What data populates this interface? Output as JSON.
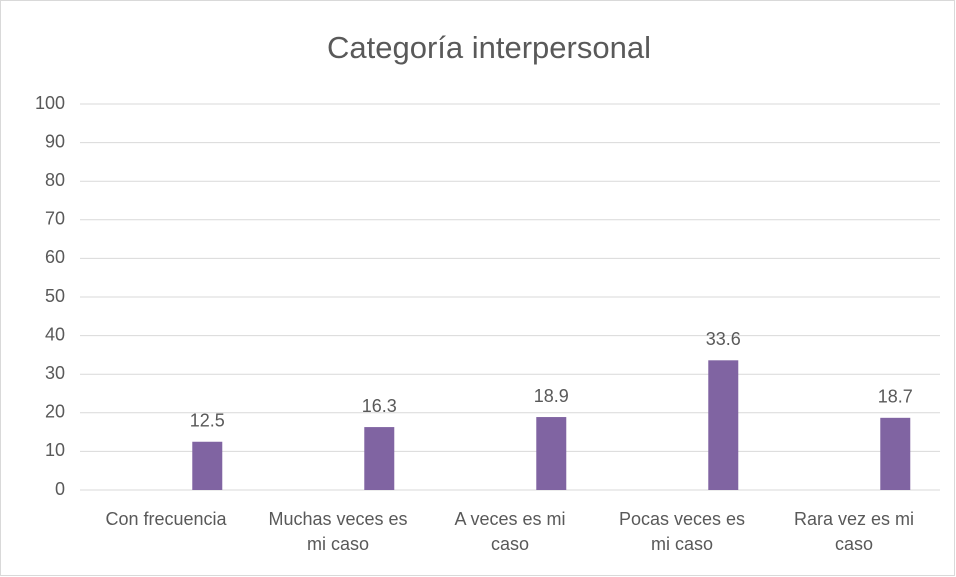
{
  "chart_data": {
    "type": "bar",
    "title": "Categoría interpersonal",
    "categories": [
      "Con frecuencia",
      "Muchas veces es mi caso",
      "A veces es mi caso",
      "Pocas veces es mi caso",
      "Rara vez es mi caso"
    ],
    "values": [
      12.5,
      16.3,
      18.9,
      33.6,
      18.7
    ],
    "color": "#8064a2",
    "ylim": [
      0,
      100
    ],
    "yticks": [
      0,
      10,
      20,
      30,
      40,
      50,
      60,
      70,
      80,
      90,
      100
    ],
    "grid": true
  }
}
